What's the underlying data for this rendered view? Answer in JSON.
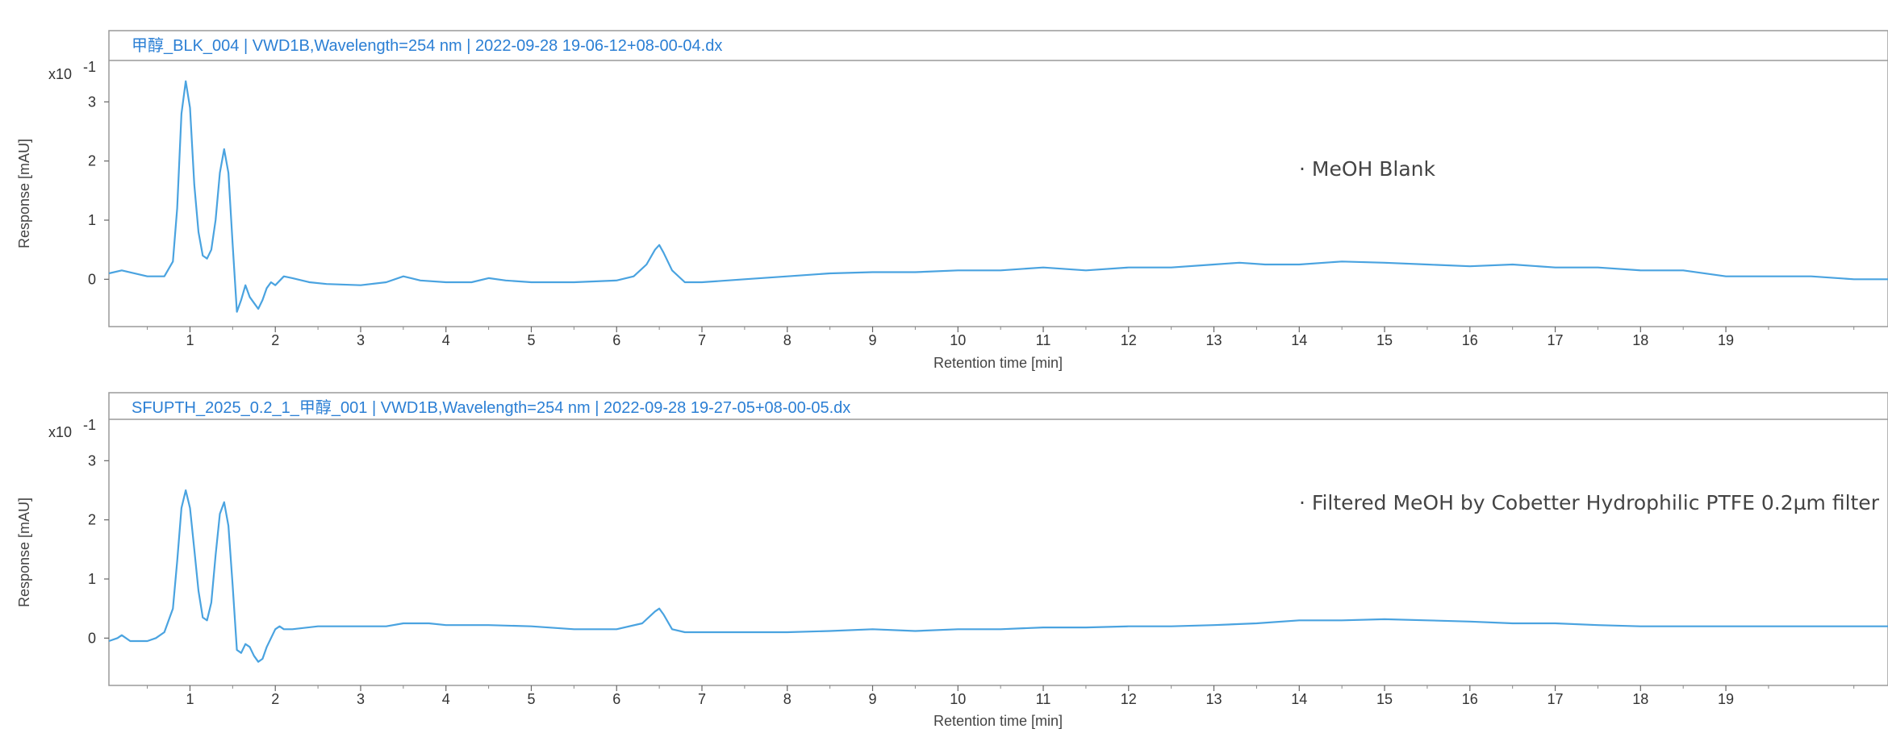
{
  "chart_data": [
    {
      "type": "line",
      "title": "甲醇_BLK_004 | VWD1B,Wavelength=254 nm | 2022-09-28 19-06-12+08-00-04.dx",
      "xlabel": "Retention time [min]",
      "ylabel": "Response [mAU]",
      "y_multiplier": "x10",
      "y_multiplier_exp": "-1",
      "xlim": [
        0.05,
        20.9
      ],
      "ylim": [
        -0.8,
        3.7
      ],
      "xticks": [
        1,
        2,
        3,
        4,
        5,
        6,
        7,
        8,
        9,
        10,
        11,
        12,
        13,
        14,
        15,
        16,
        17,
        18,
        19
      ],
      "yticks": [
        0,
        1,
        2,
        3
      ],
      "annotation": "MeOH Blank",
      "grid": false,
      "color": "#4aa3e0",
      "series": [
        {
          "x": [
            0.05,
            0.2,
            0.5,
            0.7,
            0.8,
            0.85,
            0.9,
            0.95,
            1.0,
            1.05,
            1.1,
            1.15,
            1.2,
            1.25,
            1.3,
            1.35,
            1.4,
            1.45,
            1.5,
            1.55,
            1.6,
            1.65,
            1.7,
            1.75,
            1.8,
            1.85,
            1.9,
            1.95,
            2.0,
            2.1,
            2.2,
            2.4,
            2.6,
            3.0,
            3.3,
            3.5,
            3.7,
            4.0,
            4.3,
            4.5,
            4.7,
            5.0,
            5.5,
            6.0,
            6.2,
            6.35,
            6.45,
            6.5,
            6.55,
            6.65,
            6.8,
            7.0,
            7.5,
            8.0,
            8.5,
            9.0,
            9.5,
            10.0,
            10.5,
            11.0,
            11.5,
            12.0,
            12.5,
            13.0,
            13.3,
            13.6,
            14.0,
            14.5,
            15.0,
            15.5,
            16.0,
            16.5,
            17.0,
            17.5,
            18.0,
            18.5,
            19.0,
            19.5,
            20.0,
            20.5,
            20.9
          ],
          "y": [
            0.1,
            0.15,
            0.05,
            0.05,
            0.3,
            1.2,
            2.8,
            3.35,
            2.9,
            1.6,
            0.8,
            0.4,
            0.35,
            0.5,
            1.0,
            1.8,
            2.2,
            1.8,
            0.6,
            -0.55,
            -0.35,
            -0.1,
            -0.3,
            -0.4,
            -0.5,
            -0.35,
            -0.15,
            -0.05,
            -0.1,
            0.05,
            0.02,
            -0.05,
            -0.08,
            -0.1,
            -0.05,
            0.05,
            -0.02,
            -0.05,
            -0.05,
            0.02,
            -0.02,
            -0.05,
            -0.05,
            -0.02,
            0.05,
            0.25,
            0.5,
            0.58,
            0.45,
            0.15,
            -0.05,
            -0.05,
            0.0,
            0.05,
            0.1,
            0.12,
            0.12,
            0.15,
            0.15,
            0.2,
            0.15,
            0.2,
            0.2,
            0.25,
            0.28,
            0.25,
            0.25,
            0.3,
            0.28,
            0.25,
            0.22,
            0.25,
            0.2,
            0.2,
            0.15,
            0.15,
            0.05,
            0.05,
            0.05,
            0.0,
            0.0
          ]
        }
      ]
    },
    {
      "type": "line",
      "title": "SFUPTH_2025_0.2_1_甲醇_001 | VWD1B,Wavelength=254 nm | 2022-09-28 19-27-05+08-00-05.dx",
      "xlabel": "Retention time [min]",
      "ylabel": "Response [mAU]",
      "y_multiplier": "x10",
      "y_multiplier_exp": "-1",
      "xlim": [
        0.05,
        20.9
      ],
      "ylim": [
        -0.8,
        3.7
      ],
      "xticks": [
        1,
        2,
        3,
        4,
        5,
        6,
        7,
        8,
        9,
        10,
        11,
        12,
        13,
        14,
        15,
        16,
        17,
        18,
        19
      ],
      "yticks": [
        0,
        1,
        2,
        3
      ],
      "annotation": "Filtered MeOH by  Cobetter Hydrophilic PTFE 0.2µm filter",
      "grid": false,
      "color": "#4aa3e0",
      "series": [
        {
          "x": [
            0.05,
            0.15,
            0.2,
            0.3,
            0.5,
            0.6,
            0.7,
            0.8,
            0.85,
            0.9,
            0.95,
            1.0,
            1.05,
            1.1,
            1.15,
            1.2,
            1.25,
            1.3,
            1.35,
            1.4,
            1.45,
            1.5,
            1.55,
            1.6,
            1.65,
            1.7,
            1.75,
            1.8,
            1.85,
            1.9,
            1.95,
            2.0,
            2.05,
            2.1,
            2.2,
            2.5,
            2.8,
            3.0,
            3.3,
            3.5,
            3.8,
            4.0,
            4.5,
            5.0,
            5.5,
            6.0,
            6.3,
            6.45,
            6.5,
            6.55,
            6.65,
            6.8,
            7.0,
            7.5,
            8.0,
            8.5,
            9.0,
            9.5,
            10.0,
            10.5,
            11.0,
            11.5,
            12.0,
            12.5,
            13.0,
            13.5,
            14.0,
            14.5,
            15.0,
            15.5,
            16.0,
            16.5,
            17.0,
            17.5,
            18.0,
            18.5,
            19.0,
            19.5,
            20.0,
            20.5,
            20.9
          ],
          "y": [
            -0.05,
            0.0,
            0.05,
            -0.05,
            -0.05,
            0.0,
            0.1,
            0.5,
            1.3,
            2.2,
            2.5,
            2.2,
            1.5,
            0.8,
            0.35,
            0.3,
            0.6,
            1.4,
            2.1,
            2.3,
            1.9,
            0.9,
            -0.2,
            -0.25,
            -0.1,
            -0.15,
            -0.3,
            -0.4,
            -0.35,
            -0.15,
            0.0,
            0.15,
            0.2,
            0.15,
            0.15,
            0.2,
            0.2,
            0.2,
            0.2,
            0.25,
            0.25,
            0.22,
            0.22,
            0.2,
            0.15,
            0.15,
            0.25,
            0.45,
            0.5,
            0.4,
            0.15,
            0.1,
            0.1,
            0.1,
            0.1,
            0.12,
            0.15,
            0.12,
            0.15,
            0.15,
            0.18,
            0.18,
            0.2,
            0.2,
            0.22,
            0.25,
            0.3,
            0.3,
            0.32,
            0.3,
            0.28,
            0.25,
            0.25,
            0.22,
            0.2,
            0.2,
            0.2,
            0.2,
            0.2,
            0.2,
            0.2
          ]
        }
      ]
    }
  ]
}
